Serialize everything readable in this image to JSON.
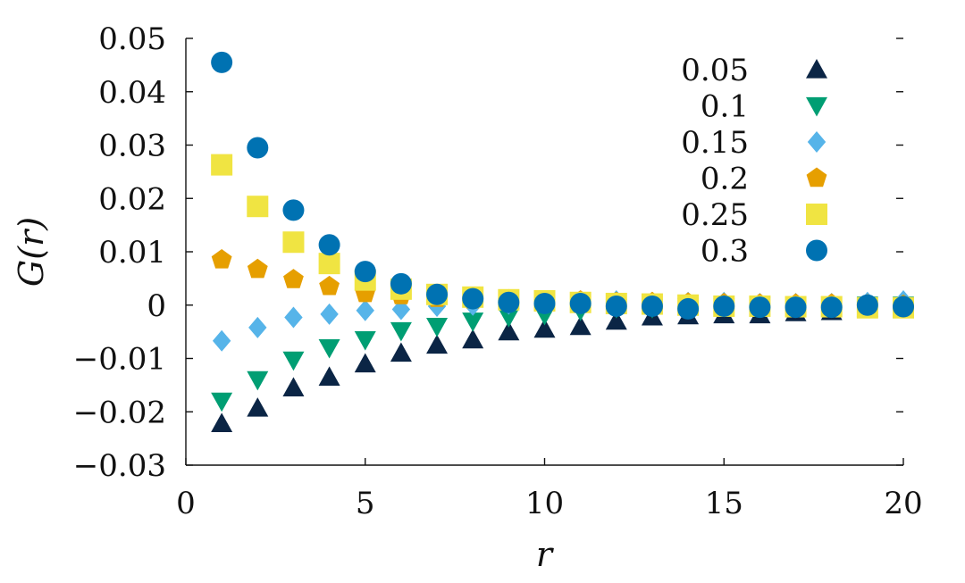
{
  "chart_data": {
    "type": "scatter",
    "xlabel": "r",
    "ylabel": "G(r)",
    "xlim": [
      0,
      20
    ],
    "ylim": [
      -0.03,
      0.05
    ],
    "x_ticks": [
      0,
      5,
      10,
      15,
      20
    ],
    "x_tick_labels": [
      "0",
      "5",
      "10",
      "15",
      "20"
    ],
    "y_ticks": [
      -0.03,
      -0.02,
      -0.01,
      0,
      0.01,
      0.02,
      0.03,
      0.04,
      0.05
    ],
    "y_tick_labels": [
      "−0.03",
      "−0.02",
      "−0.01",
      "0",
      "0.01",
      "0.02",
      "0.03",
      "0.04",
      "0.05"
    ],
    "grid": false,
    "legend_position": "top-right",
    "x": [
      1,
      2,
      3,
      4,
      5,
      6,
      7,
      8,
      9,
      10,
      11,
      12,
      13,
      14,
      15,
      16,
      17,
      18,
      19,
      20
    ],
    "series": [
      {
        "name": "0.05",
        "marker": "triangle-up",
        "color": "#0b2545",
        "values": [
          -0.0222,
          -0.0193,
          -0.0155,
          -0.0135,
          -0.011,
          -0.009,
          -0.0075,
          -0.0065,
          -0.005,
          -0.0045,
          -0.004,
          -0.003,
          -0.0022,
          -0.002,
          -0.0018,
          -0.0018,
          -0.0014,
          -0.0012,
          -0.0005,
          -0.0002
        ]
      },
      {
        "name": "0.1",
        "marker": "triangle-down",
        "color": "#009e73",
        "values": [
          -0.018,
          -0.014,
          -0.0103,
          -0.008,
          -0.0065,
          -0.0048,
          -0.004,
          -0.003,
          -0.0022,
          -0.0018,
          -0.001,
          -0.0005,
          -0.0005,
          -0.0003,
          -0.0003,
          -0.0002,
          -0.0002,
          -0.0001,
          0.0,
          0.0
        ]
      },
      {
        "name": "0.15",
        "marker": "diamond",
        "color": "#56b4e9",
        "values": [
          -0.0067,
          -0.0042,
          -0.0023,
          -0.0017,
          -0.001,
          -0.0008,
          -0.0002,
          0.0,
          0.0002,
          0.0005,
          0.0005,
          0.0008,
          0.0005,
          0.0005,
          0.0005,
          0.0003,
          0.0003,
          0.0003,
          0.0005,
          0.0008
        ]
      },
      {
        "name": "0.2",
        "marker": "pentagon",
        "color": "#e69f00",
        "values": [
          0.0085,
          0.0067,
          0.0048,
          0.0035,
          0.0022,
          0.0018,
          0.0013,
          0.001,
          0.001,
          0.0008,
          0.0008,
          0.0005,
          0.0005,
          0.0004,
          0.0003,
          0.0002,
          0.0002,
          0.0002,
          0.0001,
          0.0
        ]
      },
      {
        "name": "0.25",
        "marker": "square",
        "color": "#f0e442",
        "values": [
          0.0263,
          0.0185,
          0.0118,
          0.0078,
          0.0047,
          0.003,
          0.002,
          0.0015,
          0.001,
          0.0008,
          0.0005,
          0.0003,
          0.0002,
          0.0,
          -0.0002,
          -0.0002,
          -0.0003,
          -0.0003,
          -0.0005,
          -0.0005
        ]
      },
      {
        "name": "0.3",
        "marker": "circle",
        "color": "#0072b2",
        "values": [
          0.0455,
          0.0295,
          0.0178,
          0.0113,
          0.0063,
          0.004,
          0.002,
          0.0012,
          0.0005,
          0.0003,
          0.0003,
          -0.0002,
          -0.0002,
          -0.0007,
          -0.0002,
          -0.0004,
          -0.0004,
          -0.0004,
          0.0,
          -0.0003
        ]
      }
    ]
  }
}
